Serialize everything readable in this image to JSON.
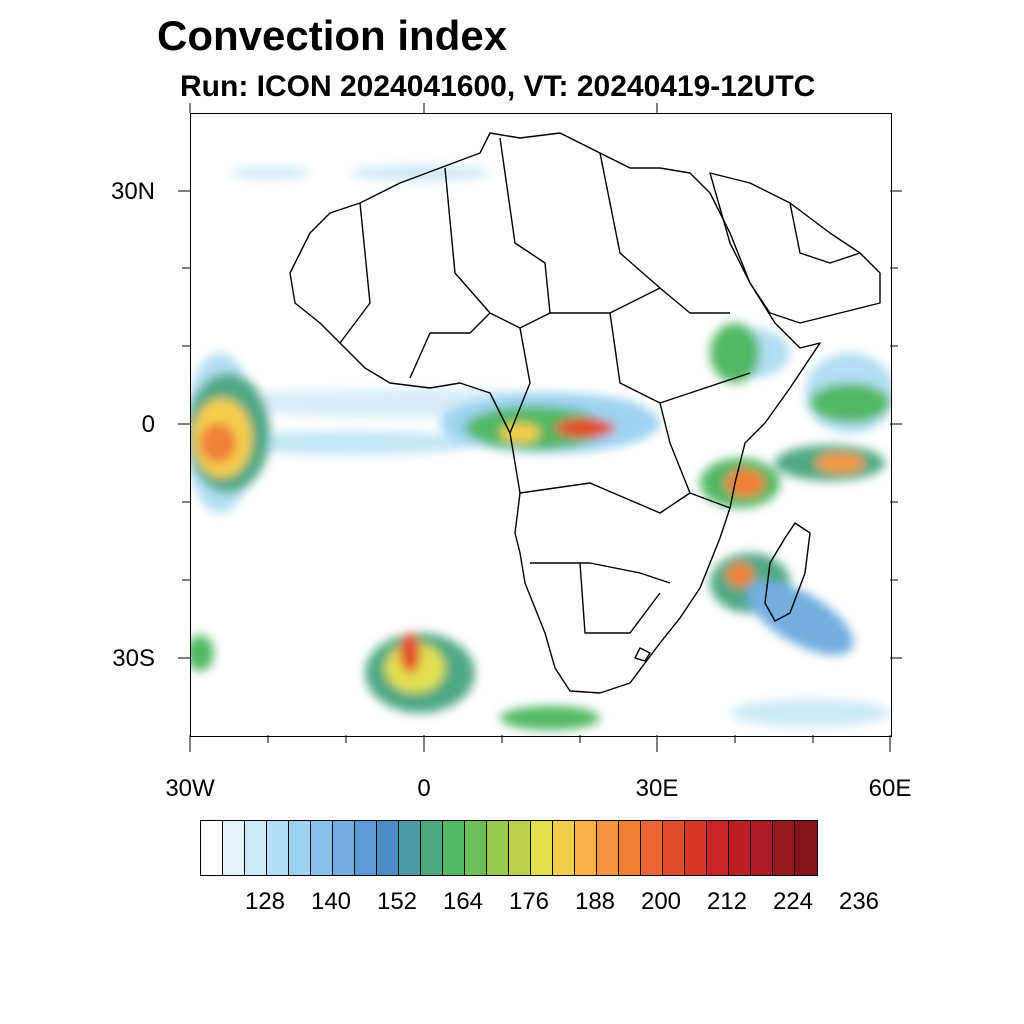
{
  "title": "Convection index",
  "subtitle": "Run: ICON 2024041600,  VT: 20240419-12UTC",
  "map": {
    "lat_labels": [
      "30N",
      "0",
      "30S"
    ],
    "lon_labels": [
      "30W",
      "0",
      "30E",
      "60E"
    ],
    "region": "Africa"
  },
  "colorbar": {
    "labels": [
      "128",
      "140",
      "152",
      "164",
      "176",
      "188",
      "200",
      "212",
      "224",
      "236"
    ],
    "colors": [
      "#ffffff",
      "#e6f4fb",
      "#cce9f7",
      "#b3def3",
      "#9dd3f1",
      "#87c1e8",
      "#72aee0",
      "#5c9bd4",
      "#4b8dc4",
      "#4b9aa6",
      "#4fa884",
      "#52b865",
      "#6bbf57",
      "#95c84f",
      "#bccf4c",
      "#e3e04f",
      "#f5ce4e",
      "#f7b24a",
      "#f69840",
      "#f07f38",
      "#ea6532",
      "#e24c2c",
      "#d93527",
      "#cc2525",
      "#bb1f24",
      "#a81c23",
      "#951921",
      "#86141d"
    ]
  }
}
